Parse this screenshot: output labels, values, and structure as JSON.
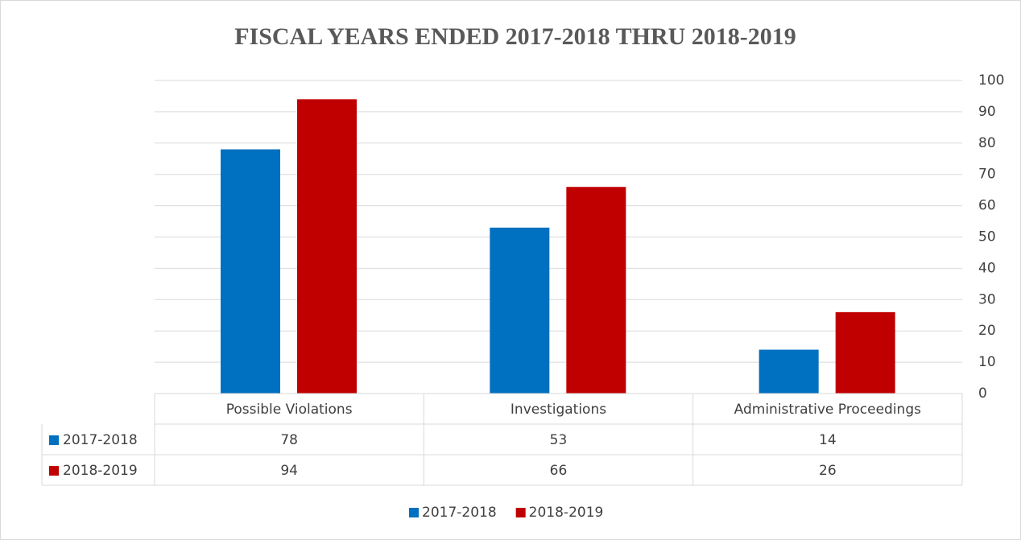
{
  "chart_data": {
    "type": "bar",
    "title": "FISCAL YEARS ENDED 2017-2018 THRU 2018-2019",
    "categories": [
      "Possible Violations",
      "Investigations",
      "Administrative Proceedings"
    ],
    "series": [
      {
        "name": "2017-2018",
        "color": "#0070c0",
        "values": [
          78,
          53,
          14
        ]
      },
      {
        "name": "2018-2019",
        "color": "#c00000",
        "values": [
          94,
          66,
          26
        ]
      }
    ],
    "ylim": [
      0,
      100
    ],
    "yticks": [
      0,
      10,
      20,
      30,
      40,
      50,
      60,
      70,
      80,
      90,
      100
    ],
    "grid": true,
    "y_axis_side": "right",
    "data_table": true,
    "legend": "bottom"
  }
}
